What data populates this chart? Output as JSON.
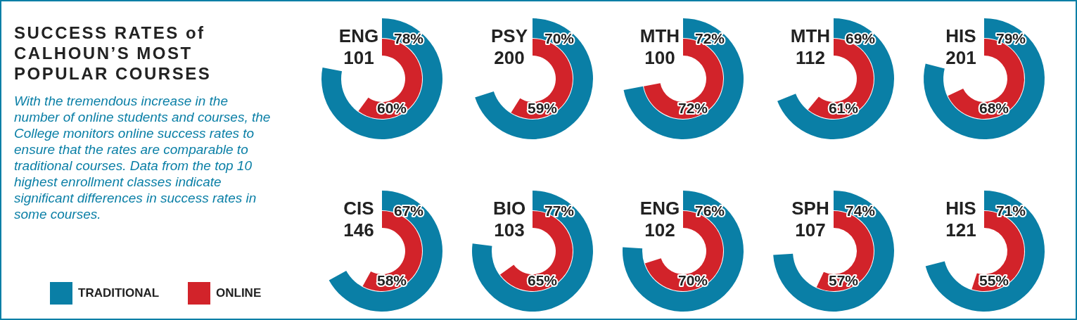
{
  "chart_data": {
    "type": "other",
    "title": "SUCCESS RATES of CALHOUN’S MOST POPULAR COURSES",
    "subtitle": "With the tremendous increase in the number of online students and courses, the College monitors online success rates to ensure that the rates are comparable to traditional courses.  Data from the top 10 highest enrollment classes indicate significant differences in success rates in some courses.",
    "categories": [
      "ENG 101",
      "PSY 200",
      "MTH 100",
      "MTH 112",
      "HIS 201",
      "CIS 146",
      "BIO 103",
      "ENG 102",
      "SPH 107",
      "HIS 121"
    ],
    "series": [
      {
        "name": "TRADITIONAL",
        "color": "#0a7fa6",
        "values": [
          78,
          70,
          72,
          69,
          79,
          67,
          77,
          76,
          74,
          71
        ],
        "value_labels": [
          "78%",
          "70%",
          "72%",
          "69%",
          "79%",
          "67%",
          "77%",
          "76%",
          "74%",
          "71%"
        ]
      },
      {
        "name": "ONLINE",
        "color": "#d2232a",
        "values": [
          60,
          59,
          72,
          61,
          68,
          58,
          65,
          70,
          57,
          55
        ],
        "value_labels": [
          "60%",
          "59%",
          "72%",
          "61%",
          "68%",
          "58%",
          "65%",
          "70%",
          "57%",
          "55%"
        ]
      }
    ],
    "legend": "bottom left"
  }
}
